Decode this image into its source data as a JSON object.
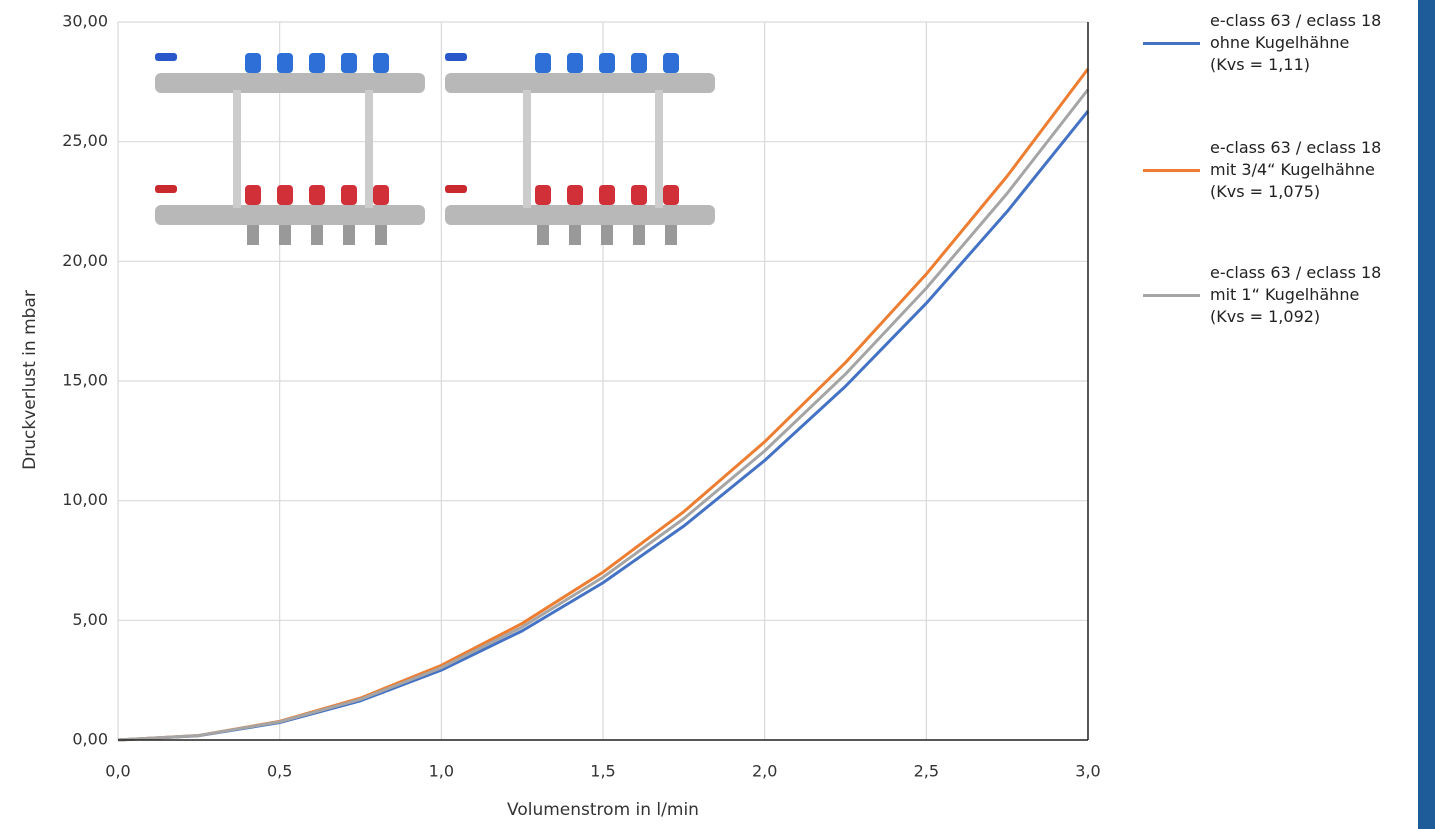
{
  "chart_data": {
    "type": "line",
    "x_label": "Volumenstrom in l/min",
    "y_label": "Druckverlust in mbar",
    "x": [
      0,
      0.25,
      0.5,
      0.75,
      1.0,
      1.25,
      1.5,
      1.75,
      2.0,
      2.25,
      2.5,
      2.75,
      3.0
    ],
    "series": [
      {
        "name": "e-class 63 / eclass 18\nohne Kugelhähne\n(Kvs = 1,11)",
        "color": "#4472c4",
        "values": [
          0,
          0.18,
          0.73,
          1.64,
          2.92,
          4.56,
          6.57,
          8.94,
          11.68,
          14.78,
          18.25,
          22.08,
          26.28
        ]
      },
      {
        "name": "e-class 63 / eclass 18\nmit 3/4“ Kugelhähne\n(Kvs = 1,075)",
        "color": "#ed7d31",
        "values": [
          0,
          0.19,
          0.78,
          1.75,
          3.12,
          4.87,
          7.01,
          9.54,
          12.46,
          15.77,
          19.47,
          23.56,
          28.04
        ]
      },
      {
        "name": "e-class 63 / eclass 18\nmit 1“ Kugelhähne\n(Kvs = 1,092)",
        "color": "#a5a5a5",
        "values": [
          0,
          0.19,
          0.76,
          1.7,
          3.02,
          4.72,
          6.8,
          9.25,
          12.08,
          15.29,
          18.88,
          22.84,
          27.18
        ]
      }
    ],
    "xlim": [
      0,
      3.0
    ],
    "ylim": [
      0,
      30
    ],
    "xticks": [
      {
        "value": 0,
        "label": "0,0"
      },
      {
        "value": 0.5,
        "label": "0,5"
      },
      {
        "value": 1.0,
        "label": "1,0"
      },
      {
        "value": 1.5,
        "label": "1,5"
      },
      {
        "value": 2.0,
        "label": "2,0"
      },
      {
        "value": 2.5,
        "label": "2,5"
      },
      {
        "value": 3.0,
        "label": "3,0"
      }
    ],
    "yticks": [
      {
        "value": 0,
        "label": "0,00"
      },
      {
        "value": 5,
        "label": "5,00"
      },
      {
        "value": 10,
        "label": "10,00"
      },
      {
        "value": 15,
        "label": "15,00"
      },
      {
        "value": 20,
        "label": "20,00"
      },
      {
        "value": 25,
        "label": "25,00"
      },
      {
        "value": 30,
        "label": "30,00"
      }
    ],
    "grid": true,
    "legend": "right"
  }
}
